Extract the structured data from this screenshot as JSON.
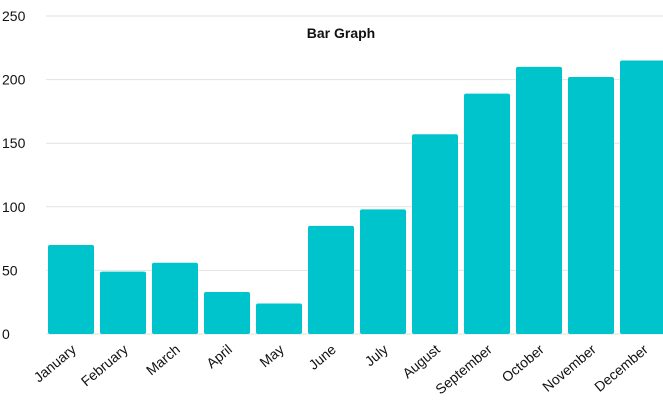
{
  "chart_data": {
    "type": "bar",
    "title": "Bar Graph",
    "xlabel": "",
    "ylabel": "",
    "categories": [
      "January",
      "February",
      "March",
      "April",
      "May",
      "June",
      "July",
      "August",
      "September",
      "October",
      "November",
      "December"
    ],
    "values": [
      70,
      49,
      56,
      33,
      24,
      85,
      98,
      157,
      189,
      210,
      202,
      215
    ],
    "ylim": [
      0,
      250
    ],
    "yticks": [
      0,
      50,
      100,
      150,
      200,
      250
    ],
    "grid": true,
    "legend": "none",
    "bar_color": "#00c4cc",
    "grid_color": "#e2e2e2"
  }
}
